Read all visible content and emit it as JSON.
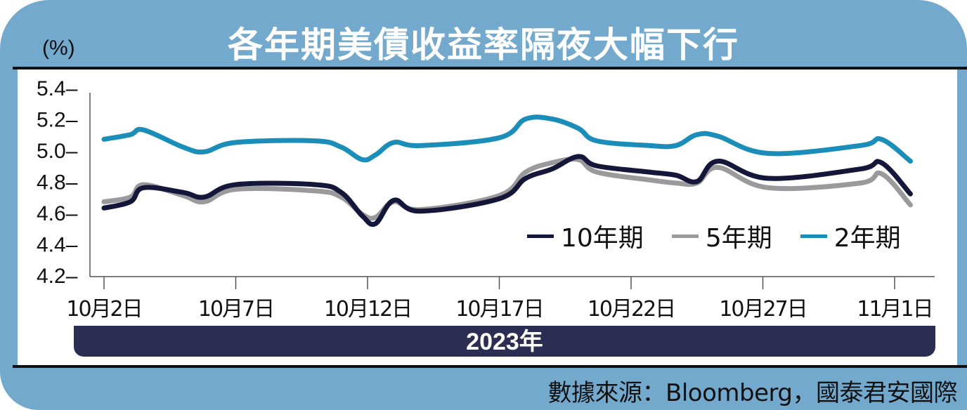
{
  "header": {
    "title": "各年期美債收益率隔夜大幅下行",
    "unit": "(%)"
  },
  "footer": {
    "year_label": "2023年",
    "source": "數據來源：Bloomberg，國泰君安國際"
  },
  "colors": {
    "background": "#74A9CE",
    "year_bar": "#2B2D52",
    "series_10y": "#14163A",
    "series_5y": "#9A9A9C",
    "series_2y": "#1A8DB8"
  },
  "chart_data": {
    "type": "line",
    "title": "各年期美債收益率隔夜大幅下行",
    "xlabel": "2023年",
    "ylabel": "(%)",
    "ylim": [
      4.2,
      5.4
    ],
    "yticks": [
      4.2,
      4.4,
      4.6,
      4.8,
      5.0,
      5.2,
      5.4
    ],
    "ytick_labels": [
      "4.2",
      "4.4",
      "4.6",
      "4.8",
      "5.0",
      "5.2",
      "5.4"
    ],
    "xtick_labels": [
      "10月2日",
      "10月7日",
      "10月12日",
      "10月17日",
      "10月22日",
      "10月27日",
      "11月1日"
    ],
    "xtick_days": [
      0,
      5,
      10,
      15,
      20,
      25,
      30
    ],
    "grid": false,
    "legend_position": "lower-right inside",
    "x_days": [
      0,
      1,
      1.5,
      3,
      3.8,
      5,
      8,
      9,
      9.8,
      10.3,
      11,
      12,
      15,
      16,
      17,
      18,
      18.7,
      20.7,
      21.7,
      22.5,
      23.3,
      25.2,
      28.7,
      29.5,
      30.6
    ],
    "x": [
      "10/2",
      "10/3",
      "10/3.5",
      "10/5",
      "10/5.8",
      "10/7",
      "10/10",
      "10/11",
      "10/11.8",
      "10/12.3",
      "10/13",
      "10/14",
      "10/17",
      "10/18",
      "10/19",
      "10/20",
      "10/20.7",
      "10/22.7",
      "10/23.7",
      "10/24.5",
      "10/25.3",
      "10/27.2",
      "10/30.7",
      "10/31.5",
      "11/1.6"
    ],
    "series": [
      {
        "name": "10年期",
        "color": "#14163A",
        "values": [
          4.63,
          4.67,
          4.76,
          4.73,
          4.7,
          4.78,
          4.78,
          4.73,
          4.58,
          4.53,
          4.68,
          4.61,
          4.69,
          4.82,
          4.88,
          4.96,
          4.9,
          4.86,
          4.84,
          4.8,
          4.93,
          4.82,
          4.88,
          4.92,
          4.72
        ]
      },
      {
        "name": "5年期",
        "color": "#9A9A9C",
        "values": [
          4.67,
          4.7,
          4.78,
          4.71,
          4.67,
          4.75,
          4.74,
          4.7,
          4.59,
          4.57,
          4.67,
          4.62,
          4.71,
          4.86,
          4.92,
          4.94,
          4.86,
          4.81,
          4.79,
          4.79,
          4.89,
          4.76,
          4.79,
          4.85,
          4.65
        ]
      },
      {
        "name": "2年期",
        "color": "#1A8DB8",
        "values": [
          5.07,
          5.1,
          5.13,
          5.02,
          4.99,
          5.05,
          5.06,
          5.02,
          4.94,
          4.97,
          5.05,
          5.03,
          5.08,
          5.2,
          5.2,
          5.14,
          5.06,
          5.03,
          5.03,
          5.1,
          5.09,
          4.98,
          5.03,
          5.07,
          4.93
        ]
      }
    ]
  },
  "legend": [
    {
      "label": "10年期",
      "color": "#14163A"
    },
    {
      "label": "5年期",
      "color": "#9A9A9C"
    },
    {
      "label": "2年期",
      "color": "#1A8DB8"
    }
  ]
}
